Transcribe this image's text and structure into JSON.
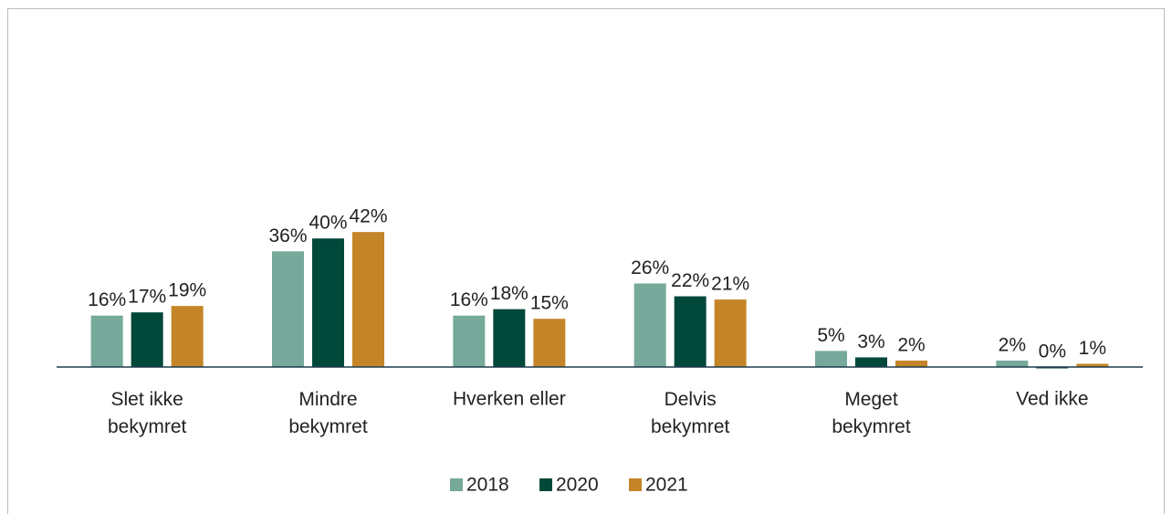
{
  "chart_data": {
    "type": "bar",
    "categories": [
      "Slet ikke bekymret",
      "Mindre bekymret",
      "Hverken eller",
      "Delvis bekymret",
      "Meget bekymret",
      "Ved ikke"
    ],
    "series": [
      {
        "name": "2018",
        "color": "#76a99a",
        "values": [
          16,
          36,
          16,
          26,
          5,
          2
        ]
      },
      {
        "name": "2020",
        "color": "#00483a",
        "values": [
          17,
          40,
          18,
          22,
          3,
          0
        ]
      },
      {
        "name": "2021",
        "color": "#c48528",
        "values": [
          19,
          42,
          15,
          21,
          2,
          1
        ]
      }
    ],
    "value_labels": [
      [
        "16%",
        "36%",
        "16%",
        "26%",
        "5%",
        "2%"
      ],
      [
        "17%",
        "40%",
        "18%",
        "22%",
        "3%",
        "0%"
      ],
      [
        "19%",
        "42%",
        "15%",
        "21%",
        "2%",
        "1%"
      ]
    ],
    "ylim": [
      0,
      100
    ],
    "legend": "bottom"
  }
}
